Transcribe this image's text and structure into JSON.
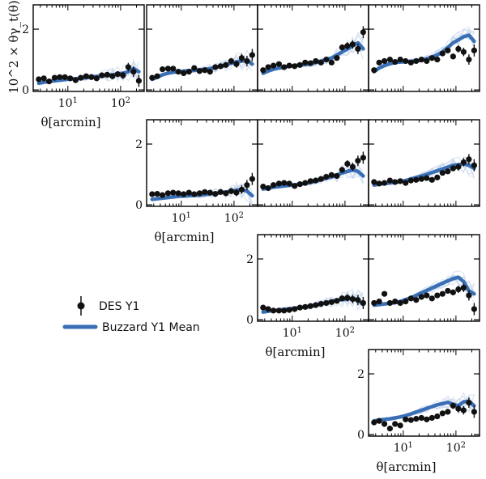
{
  "chart_data": {
    "type": "scatter",
    "layout": "upper-triangular 4x4 grid of panels",
    "x_scale": "log",
    "xlim": [
      2.2,
      280
    ],
    "ylim": [
      -0.05,
      2.8
    ],
    "x_ticks": [
      10,
      100
    ],
    "x_tick_labels": [
      "10^1",
      "10^2"
    ],
    "y_ticks": [
      0,
      2
    ],
    "y_tick_labels": [
      "0",
      "2"
    ],
    "xlabel": "θ[arcmin]",
    "ylabel": "10^2 × θγ_t(θ)",
    "legend": {
      "placement": "left-middle",
      "entries": [
        {
          "label": "DES Y1",
          "marker": "black-circle-errorbar"
        },
        {
          "label": "Buzzard Y1 Mean",
          "marker": "blue-thick-line"
        }
      ]
    },
    "colors": {
      "data": "#111111",
      "mean": "#3a6fb5",
      "realizations": "#c7d6ec"
    },
    "x": [
      2.8,
      3.5,
      4.4,
      5.6,
      7.0,
      8.8,
      11.1,
      14.0,
      17.6,
      22.2,
      27.9,
      35.1,
      44.2,
      55.7,
      70.1,
      88.3,
      111.1,
      139.9,
      176.1,
      221.7
    ],
    "panels": [
      {
        "row": 0,
        "col": 0,
        "des": [
          0.35,
          0.38,
          0.28,
          0.4,
          0.42,
          0.42,
          0.38,
          0.32,
          0.4,
          0.45,
          0.42,
          0.38,
          0.48,
          0.5,
          0.45,
          0.52,
          0.48,
          0.75,
          0.6,
          0.3
        ],
        "err": [
          0.08,
          0.07,
          0.07,
          0.06,
          0.06,
          0.06,
          0.05,
          0.05,
          0.05,
          0.05,
          0.06,
          0.06,
          0.07,
          0.08,
          0.09,
          0.1,
          0.12,
          0.14,
          0.17,
          0.2
        ],
        "mean": [
          0.22,
          0.25,
          0.28,
          0.3,
          0.32,
          0.34,
          0.36,
          0.37,
          0.38,
          0.4,
          0.42,
          0.44,
          0.46,
          0.48,
          0.5,
          0.52,
          0.55,
          0.6,
          0.7,
          0.6
        ]
      },
      {
        "row": 0,
        "col": 1,
        "des": [
          0.4,
          0.45,
          0.68,
          0.7,
          0.7,
          0.6,
          0.55,
          0.6,
          0.72,
          0.62,
          0.65,
          0.6,
          0.75,
          0.78,
          0.82,
          0.95,
          0.85,
          1.05,
          0.95,
          1.15
        ],
        "err": [
          0.08,
          0.07,
          0.07,
          0.06,
          0.06,
          0.06,
          0.05,
          0.05,
          0.05,
          0.05,
          0.06,
          0.06,
          0.07,
          0.08,
          0.09,
          0.1,
          0.12,
          0.14,
          0.17,
          0.2
        ],
        "mean": [
          0.35,
          0.42,
          0.5,
          0.55,
          0.58,
          0.6,
          0.62,
          0.63,
          0.64,
          0.66,
          0.68,
          0.7,
          0.74,
          0.78,
          0.82,
          0.88,
          0.92,
          0.95,
          0.98,
          0.85
        ]
      },
      {
        "row": 0,
        "col": 2,
        "des": [
          0.65,
          0.75,
          0.8,
          0.85,
          0.75,
          0.8,
          0.78,
          0.82,
          0.9,
          0.88,
          0.95,
          0.9,
          1.0,
          0.9,
          1.05,
          1.4,
          1.45,
          1.5,
          1.35,
          1.9
        ],
        "err": [
          0.08,
          0.07,
          0.07,
          0.06,
          0.06,
          0.06,
          0.05,
          0.05,
          0.05,
          0.05,
          0.06,
          0.06,
          0.07,
          0.08,
          0.09,
          0.1,
          0.12,
          0.14,
          0.17,
          0.2
        ],
        "mean": [
          0.55,
          0.62,
          0.68,
          0.72,
          0.75,
          0.78,
          0.8,
          0.82,
          0.84,
          0.86,
          0.9,
          0.95,
          1.0,
          1.05,
          1.15,
          1.25,
          1.35,
          1.45,
          1.55,
          1.35
        ]
      },
      {
        "row": 0,
        "col": 3,
        "des": [
          0.65,
          0.9,
          0.95,
          1.0,
          0.92,
          1.0,
          0.95,
          0.9,
          0.95,
          1.0,
          0.95,
          1.05,
          1.0,
          1.2,
          1.3,
          1.1,
          1.35,
          1.25,
          1.0,
          1.3
        ],
        "err": [
          0.08,
          0.07,
          0.07,
          0.06,
          0.06,
          0.06,
          0.05,
          0.05,
          0.05,
          0.05,
          0.06,
          0.06,
          0.07,
          0.08,
          0.09,
          0.1,
          0.12,
          0.14,
          0.17,
          0.2
        ],
        "mean": [
          0.6,
          0.72,
          0.8,
          0.86,
          0.9,
          0.92,
          0.93,
          0.94,
          0.96,
          0.98,
          1.02,
          1.08,
          1.15,
          1.25,
          1.4,
          1.55,
          1.65,
          1.75,
          1.8,
          1.6
        ]
      },
      {
        "row": 1,
        "col": 1,
        "des": [
          0.35,
          0.36,
          0.32,
          0.38,
          0.4,
          0.38,
          0.35,
          0.4,
          0.35,
          0.38,
          0.42,
          0.4,
          0.36,
          0.42,
          0.38,
          0.45,
          0.4,
          0.5,
          0.65,
          0.85
        ],
        "err": [
          0.08,
          0.07,
          0.07,
          0.06,
          0.06,
          0.06,
          0.05,
          0.05,
          0.05,
          0.05,
          0.06,
          0.06,
          0.07,
          0.08,
          0.09,
          0.1,
          0.12,
          0.14,
          0.17,
          0.2
        ],
        "mean": [
          0.18,
          0.2,
          0.22,
          0.24,
          0.26,
          0.28,
          0.29,
          0.3,
          0.31,
          0.32,
          0.34,
          0.36,
          0.38,
          0.4,
          0.42,
          0.45,
          0.48,
          0.5,
          0.45,
          0.3
        ]
      },
      {
        "row": 1,
        "col": 2,
        "des": [
          0.6,
          0.55,
          0.65,
          0.7,
          0.72,
          0.7,
          0.62,
          0.68,
          0.72,
          0.78,
          0.8,
          0.85,
          0.92,
          0.98,
          0.95,
          1.15,
          1.35,
          1.25,
          1.45,
          1.55
        ],
        "err": [
          0.08,
          0.07,
          0.07,
          0.06,
          0.06,
          0.06,
          0.05,
          0.05,
          0.05,
          0.05,
          0.06,
          0.06,
          0.07,
          0.08,
          0.09,
          0.1,
          0.12,
          0.14,
          0.17,
          0.2
        ],
        "mean": [
          0.52,
          0.55,
          0.58,
          0.6,
          0.62,
          0.64,
          0.66,
          0.68,
          0.7,
          0.74,
          0.78,
          0.82,
          0.88,
          0.92,
          0.98,
          1.05,
          1.1,
          1.15,
          1.1,
          0.95
        ]
      },
      {
        "row": 1,
        "col": 3,
        "des": [
          0.75,
          0.7,
          0.72,
          0.8,
          0.75,
          0.78,
          0.72,
          0.8,
          0.82,
          0.85,
          0.88,
          0.82,
          0.9,
          1.05,
          1.1,
          1.2,
          1.25,
          1.4,
          1.5,
          1.3
        ],
        "err": [
          0.08,
          0.07,
          0.07,
          0.06,
          0.06,
          0.06,
          0.05,
          0.05,
          0.05,
          0.05,
          0.06,
          0.06,
          0.07,
          0.08,
          0.09,
          0.1,
          0.12,
          0.14,
          0.17,
          0.2
        ],
        "mean": [
          0.65,
          0.68,
          0.7,
          0.72,
          0.74,
          0.76,
          0.8,
          0.85,
          0.9,
          0.95,
          1.0,
          1.06,
          1.12,
          1.18,
          1.24,
          1.3,
          1.32,
          1.35,
          1.3,
          1.2
        ]
      },
      {
        "row": 2,
        "col": 2,
        "des": [
          0.4,
          0.35,
          0.3,
          0.3,
          0.3,
          0.32,
          0.35,
          0.4,
          0.42,
          0.45,
          0.48,
          0.52,
          0.55,
          0.58,
          0.62,
          0.7,
          0.72,
          0.68,
          0.65,
          0.55
        ],
        "err": [
          0.08,
          0.07,
          0.07,
          0.06,
          0.06,
          0.06,
          0.05,
          0.05,
          0.05,
          0.05,
          0.06,
          0.06,
          0.07,
          0.08,
          0.09,
          0.1,
          0.12,
          0.14,
          0.17,
          0.2
        ],
        "mean": [
          0.25,
          0.28,
          0.3,
          0.32,
          0.34,
          0.36,
          0.38,
          0.4,
          0.42,
          0.44,
          0.48,
          0.52,
          0.56,
          0.6,
          0.64,
          0.66,
          0.68,
          0.7,
          0.65,
          0.5
        ]
      },
      {
        "row": 2,
        "col": 3,
        "des": [
          0.55,
          0.6,
          0.85,
          0.55,
          0.6,
          0.55,
          0.6,
          0.7,
          0.65,
          0.75,
          0.8,
          0.7,
          0.8,
          0.85,
          0.95,
          0.9,
          1.0,
          1.05,
          0.8,
          0.35
        ],
        "err": [
          0.08,
          0.07,
          0.07,
          0.06,
          0.06,
          0.06,
          0.05,
          0.05,
          0.05,
          0.05,
          0.06,
          0.06,
          0.07,
          0.08,
          0.09,
          0.1,
          0.12,
          0.14,
          0.17,
          0.2
        ],
        "mean": [
          0.48,
          0.5,
          0.52,
          0.54,
          0.56,
          0.6,
          0.66,
          0.72,
          0.8,
          0.88,
          0.96,
          1.04,
          1.12,
          1.2,
          1.28,
          1.35,
          1.4,
          1.25,
          0.95,
          0.85
        ]
      },
      {
        "row": 3,
        "col": 3,
        "des": [
          0.4,
          0.45,
          0.35,
          0.2,
          0.35,
          0.3,
          0.5,
          0.48,
          0.52,
          0.55,
          0.5,
          0.55,
          0.6,
          0.7,
          0.75,
          0.95,
          0.85,
          0.8,
          1.05,
          0.75
        ],
        "err": [
          0.08,
          0.07,
          0.07,
          0.06,
          0.06,
          0.06,
          0.05,
          0.05,
          0.05,
          0.05,
          0.06,
          0.06,
          0.07,
          0.08,
          0.09,
          0.1,
          0.12,
          0.14,
          0.17,
          0.2
        ],
        "mean": [
          0.45,
          0.48,
          0.5,
          0.52,
          0.55,
          0.58,
          0.62,
          0.68,
          0.74,
          0.8,
          0.86,
          0.92,
          0.98,
          1.02,
          1.06,
          1.0,
          0.95,
          1.08,
          1.1,
          0.95
        ]
      }
    ]
  }
}
